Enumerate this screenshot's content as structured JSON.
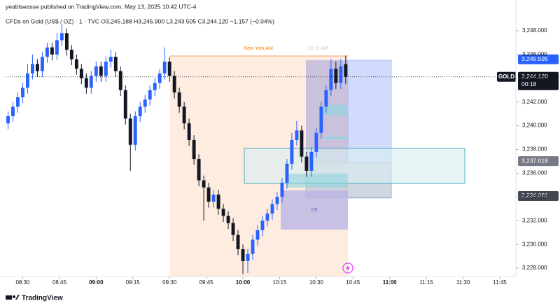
{
  "header": {
    "published": "yeabtseasse published on TradingView.com, May 13, 2025 10:42 UTC-4",
    "symbol": "CFDs on Gold (US$ / OZ) · 1 · TVC   O3,245.188   H3,245.900   L3,243.505   C3,244.120   −1.157 (−0.04%)"
  },
  "chart_data": {
    "type": "candlestick",
    "up_color": "#2962ff",
    "down_color": "#131722",
    "x": [
      504,
      506,
      508,
      510,
      512,
      514,
      516,
      518,
      520,
      522,
      524,
      526,
      528,
      530,
      532,
      534,
      536,
      538,
      540,
      542,
      544,
      546,
      548,
      550,
      552,
      554,
      556,
      558,
      560,
      562,
      564,
      566,
      568,
      570,
      572,
      574,
      576,
      578,
      580,
      582,
      584,
      586,
      588,
      590,
      592,
      594,
      596,
      598,
      600,
      602,
      604,
      606,
      608,
      610,
      612,
      614,
      616,
      618,
      620,
      622,
      624,
      626,
      628,
      630,
      632,
      634,
      636,
      638,
      640,
      642
    ],
    "open": [
      3240.2,
      3240.8,
      3241.6,
      3242.4,
      3243.2,
      3244.4,
      3245.2,
      3244.6,
      3245.8,
      3246.6,
      3246.0,
      3247.2,
      3247.8,
      3246.4,
      3245.6,
      3244.8,
      3244.0,
      3243.2,
      3244.2,
      3245.0,
      3244.2,
      3245.4,
      3245.8,
      3244.6,
      3243.0,
      3240.6,
      3238.4,
      3240.8,
      3241.6,
      3242.2,
      3243.0,
      3243.6,
      3244.4,
      3245.4,
      3244.2,
      3242.8,
      3241.6,
      3240.2,
      3238.8,
      3237.2,
      3235.4,
      3234.8,
      3233.6,
      3234.2,
      3233.0,
      3232.4,
      3231.8,
      3230.8,
      3229.6,
      3228.6,
      3229.2,
      3230.4,
      3231.2,
      3232.0,
      3232.6,
      3233.4,
      3234.0,
      3235.2,
      3236.8,
      3238.8,
      3239.6,
      3237.4,
      3236.2,
      3237.8,
      3239.4,
      3241.6,
      3243.0,
      3244.8,
      3243.6,
      3245.188
    ],
    "high": [
      3241.2,
      3242.0,
      3242.8,
      3243.6,
      3245.2,
      3246.0,
      3245.6,
      3246.2,
      3247.0,
      3247.0,
      3247.8,
      3248.6,
      3248.2,
      3246.8,
      3246.0,
      3245.2,
      3244.4,
      3244.6,
      3245.4,
      3245.4,
      3245.8,
      3246.4,
      3246.2,
      3245.0,
      3243.4,
      3241.0,
      3241.2,
      3242.0,
      3242.6,
      3243.4,
      3244.0,
      3244.8,
      3246.6,
      3245.8,
      3244.6,
      3243.2,
      3242.0,
      3240.6,
      3239.2,
      3237.6,
      3235.8,
      3235.2,
      3234.6,
      3234.6,
      3233.4,
      3232.8,
      3232.2,
      3231.2,
      3230.0,
      3229.6,
      3230.8,
      3231.6,
      3232.4,
      3233.0,
      3233.8,
      3234.4,
      3235.6,
      3237.2,
      3239.4,
      3240.4,
      3240.0,
      3237.8,
      3238.2,
      3239.8,
      3242.0,
      3243.4,
      3245.6,
      3245.4,
      3245.6,
      3245.9
    ],
    "low": [
      3239.7,
      3240.3,
      3241.1,
      3241.9,
      3242.7,
      3243.9,
      3244.1,
      3244.1,
      3245.3,
      3245.5,
      3245.5,
      3246.7,
      3245.9,
      3245.1,
      3244.3,
      3243.5,
      3242.7,
      3242.7,
      3243.7,
      3243.7,
      3243.7,
      3244.9,
      3244.1,
      3242.5,
      3240.1,
      3236.2,
      3237.9,
      3240.3,
      3241.1,
      3241.7,
      3242.5,
      3243.1,
      3243.9,
      3243.7,
      3242.3,
      3241.1,
      3239.7,
      3238.3,
      3236.7,
      3234.9,
      3232.0,
      3233.1,
      3233.1,
      3232.5,
      3231.9,
      3231.3,
      3230.3,
      3229.1,
      3227.5,
      3227.6,
      3228.7,
      3229.9,
      3230.7,
      3231.5,
      3232.1,
      3232.9,
      3233.5,
      3234.7,
      3236.3,
      3238.3,
      3236.9,
      3235.7,
      3235.7,
      3237.3,
      3238.9,
      3241.1,
      3242.5,
      3243.1,
      3243.1,
      3243.505
    ],
    "close": [
      3240.8,
      3241.6,
      3242.4,
      3243.2,
      3244.4,
      3245.2,
      3244.6,
      3245.8,
      3246.6,
      3246.0,
      3247.2,
      3247.8,
      3246.4,
      3245.6,
      3244.8,
      3244.0,
      3243.2,
      3244.2,
      3245.0,
      3244.2,
      3245.4,
      3245.8,
      3244.6,
      3243.0,
      3240.6,
      3238.4,
      3240.8,
      3241.6,
      3242.2,
      3243.0,
      3243.6,
      3244.4,
      3245.4,
      3244.2,
      3242.8,
      3241.6,
      3240.2,
      3238.8,
      3237.2,
      3235.4,
      3234.8,
      3233.6,
      3234.2,
      3233.0,
      3232.4,
      3231.8,
      3230.8,
      3229.6,
      3228.6,
      3229.2,
      3230.4,
      3231.2,
      3232.0,
      3232.6,
      3233.4,
      3234.0,
      3235.2,
      3236.8,
      3238.8,
      3239.6,
      3237.4,
      3236.2,
      3237.8,
      3239.4,
      3241.6,
      3243.0,
      3244.8,
      3243.6,
      3245.0,
      3244.12
    ],
    "xlim": [
      503,
      711
    ],
    "ylim": [
      3227.3,
      3250.0
    ],
    "xticks": [
      {
        "value": 510,
        "label": "08:30"
      },
      {
        "value": 525,
        "label": "08:45"
      },
      {
        "value": 540,
        "label": "09:00"
      },
      {
        "value": 555,
        "label": "09:15"
      },
      {
        "value": 570,
        "label": "09:30"
      },
      {
        "value": 585,
        "label": "09:45"
      },
      {
        "value": 600,
        "label": "10:00"
      },
      {
        "value": 615,
        "label": "10:15"
      },
      {
        "value": 630,
        "label": "10:30"
      },
      {
        "value": 645,
        "label": "10:45"
      },
      {
        "value": 660,
        "label": "11:00"
      },
      {
        "value": 675,
        "label": "11:15"
      },
      {
        "value": 690,
        "label": "11:30"
      },
      {
        "value": 705,
        "label": "11:45"
      }
    ],
    "yticks": [
      {
        "value": 3228,
        "label": "3,228.000"
      },
      {
        "value": 3230,
        "label": "3,230.000"
      },
      {
        "value": 3232,
        "label": "3,232.000"
      },
      {
        "value": 3234,
        "label": "3,234.000"
      },
      {
        "value": 3236,
        "label": "3,236.000"
      },
      {
        "value": 3238,
        "label": "3,238.000"
      },
      {
        "value": 3240,
        "label": "3,240.000"
      },
      {
        "value": 3242,
        "label": "3,242.000"
      },
      {
        "value": 3244,
        "label": "3,244.000"
      },
      {
        "value": 3246,
        "label": "3,246.000"
      },
      {
        "value": 3248,
        "label": "3,248.000"
      }
    ],
    "price_labels": [
      {
        "value": 3245.595,
        "label": "3,245.595",
        "color": "#2962ff"
      },
      {
        "value": 3237.018,
        "label": "3,237.018",
        "color": "#787b86"
      },
      {
        "value": 3234.081,
        "label": "3,234.081",
        "color": "#434651"
      }
    ],
    "last_price": {
      "symbol": "GOLD",
      "value": 3244.12,
      "label": "3,244.120",
      "countdown": "00:18"
    },
    "annotations": {
      "session": "New York AM",
      "hour": "10-11 AM",
      "block": "OB"
    }
  },
  "footer": {
    "brand": "TradingView"
  }
}
